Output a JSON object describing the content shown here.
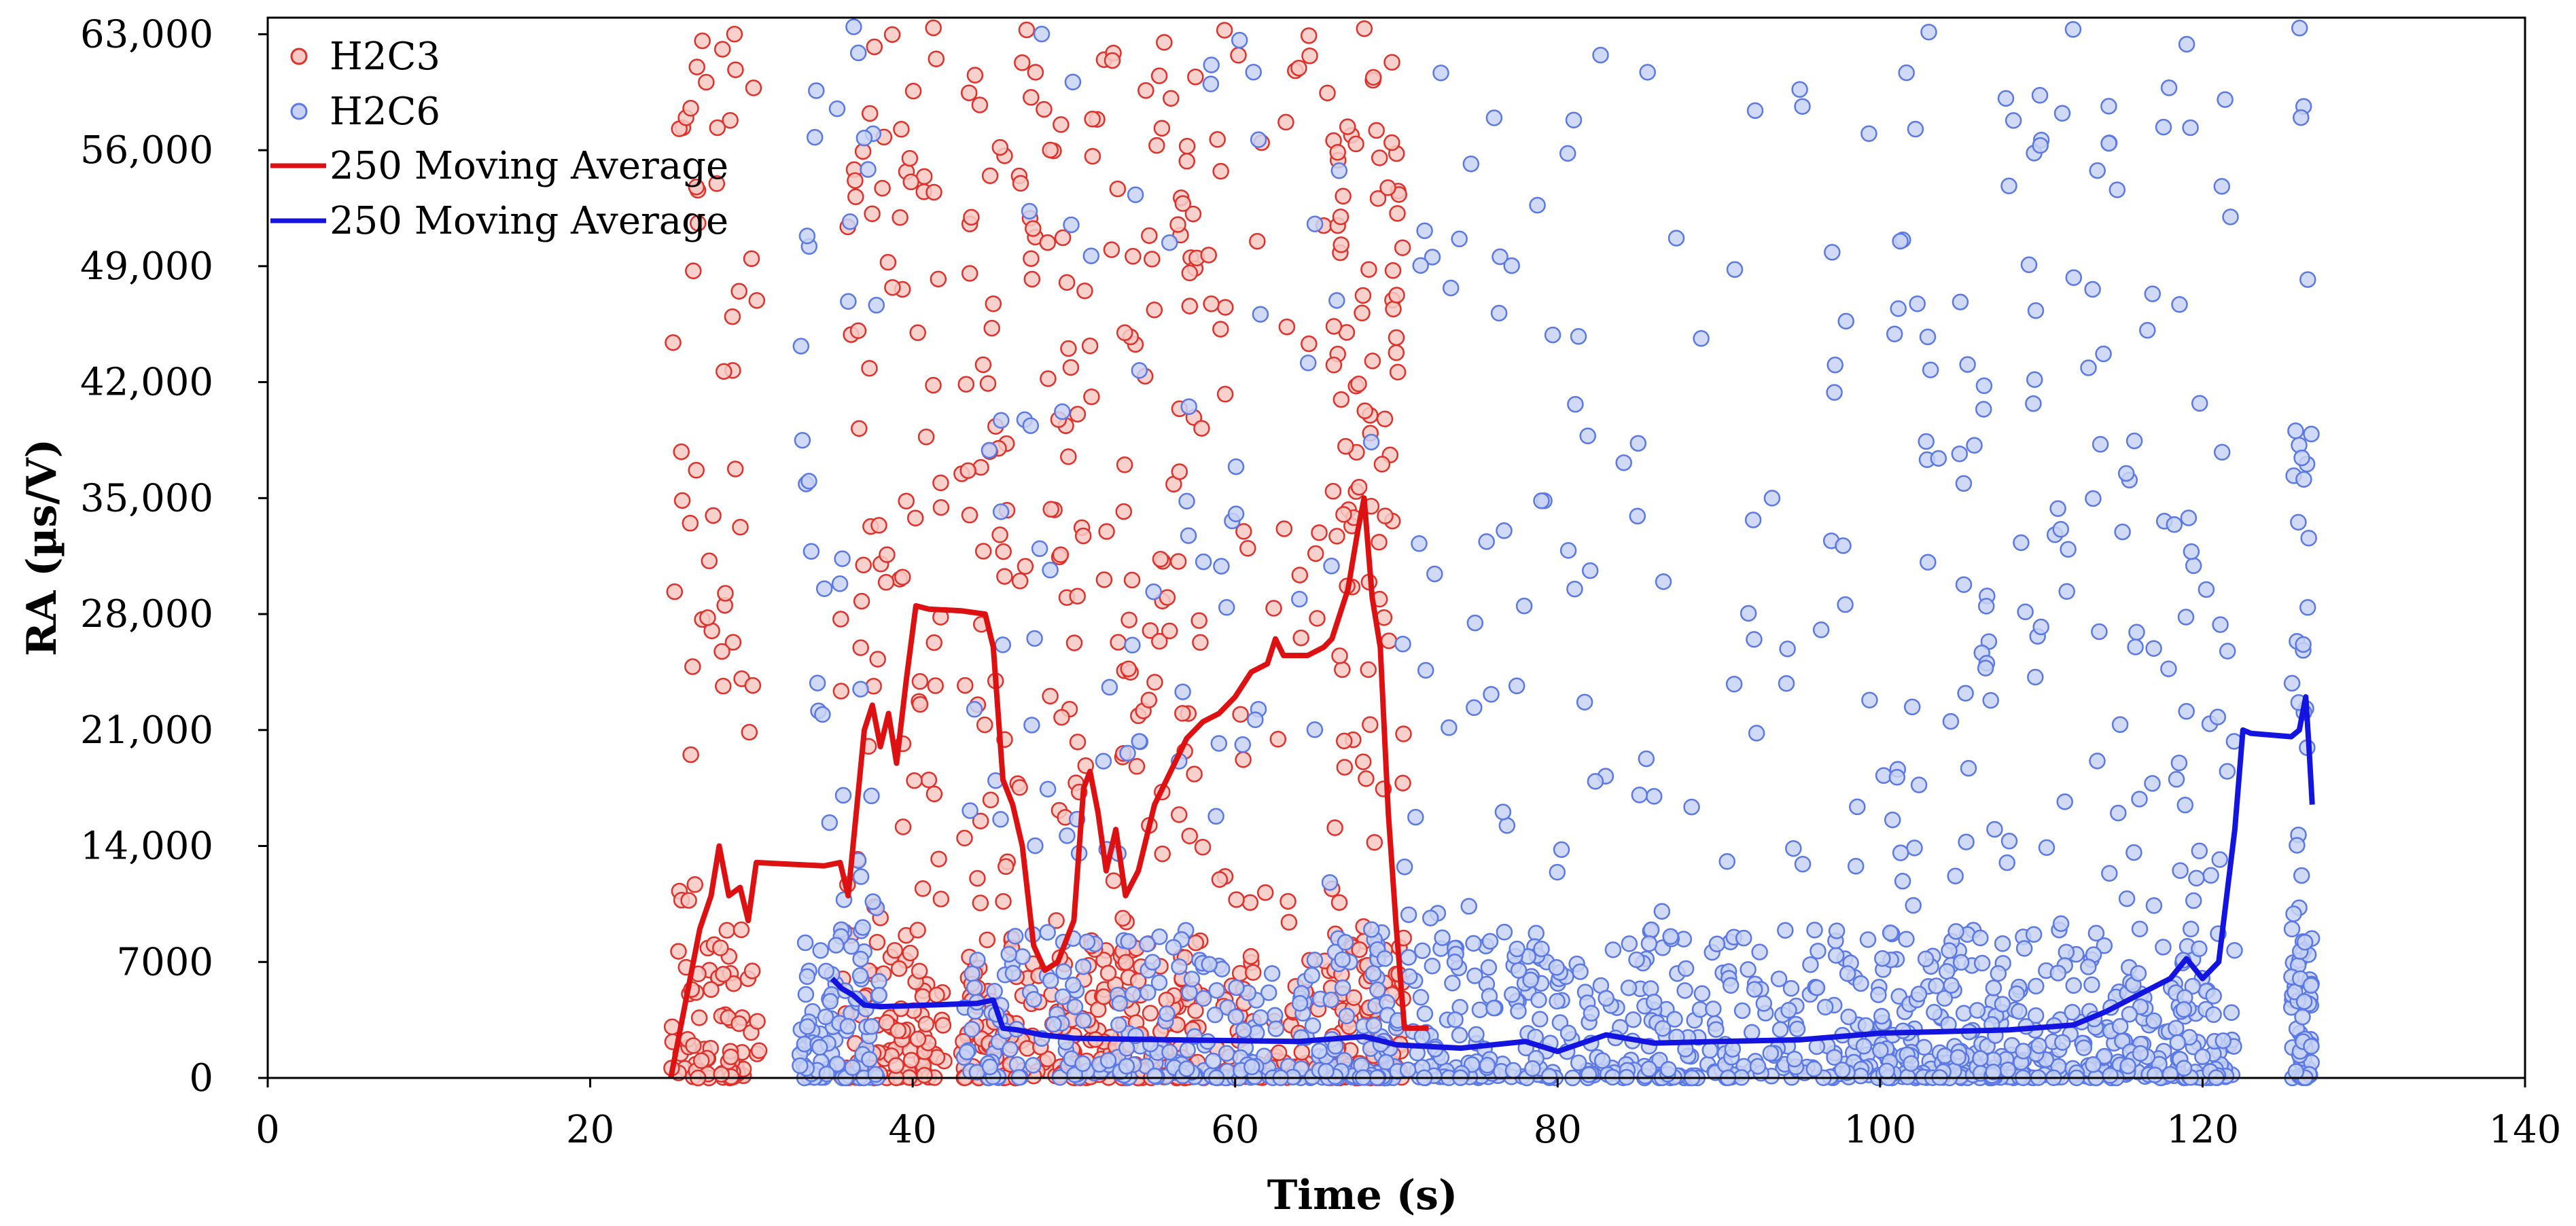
{
  "chart_data": {
    "type": "scatter",
    "title": "",
    "xlabel": "Time (s)",
    "ylabel": "RA (µs/V)",
    "xlim": [
      0,
      140
    ],
    "ylim": [
      0,
      64000
    ],
    "x_ticks": [
      0,
      20,
      40,
      60,
      80,
      100,
      120,
      140
    ],
    "x_tick_labels": [
      "0",
      "20",
      "40",
      "60",
      "80",
      "100",
      "120",
      "140"
    ],
    "y_ticks": [
      0,
      7000,
      14000,
      21000,
      28000,
      35000,
      42000,
      49000,
      56000,
      63000
    ],
    "y_tick_labels": [
      "0",
      "7000",
      "14,000",
      "21,000",
      "28,000",
      "35,000",
      "42,000",
      "49,000",
      "56,000",
      "63,000"
    ],
    "grid": false,
    "legend_position": "top-left",
    "series": [
      {
        "name": "H2C3",
        "kind": "scatter",
        "color": "#e0302a",
        "fill": "#f7c9c4",
        "clusters": [
          {
            "x_range": [
              25,
              30.5
            ],
            "dense": 70,
            "sparse": 55
          },
          {
            "x_range": [
              35.5,
              42
            ],
            "dense": 90,
            "sparse": 80
          },
          {
            "x_range": [
              43,
              58
            ],
            "dense": 220,
            "sparse": 200
          },
          {
            "x_range": [
              58,
              66
            ],
            "dense": 55,
            "sparse": 45
          },
          {
            "x_range": [
              66,
              70.5
            ],
            "dense": 90,
            "sparse": 90
          }
        ]
      },
      {
        "name": "H2C6",
        "kind": "scatter",
        "color": "#5a78e6",
        "fill": "#c8d2f4",
        "clusters": [
          {
            "x_range": [
              33,
              38
            ],
            "dense": 80,
            "sparse": 45
          },
          {
            "x_range": [
              43,
              70
            ],
            "dense": 260,
            "sparse": 90
          },
          {
            "x_range": [
              70,
              100
            ],
            "dense": 320,
            "sparse": 120
          },
          {
            "x_range": [
              100,
              122
            ],
            "dense": 320,
            "sparse": 190
          },
          {
            "x_range": [
              125.5,
              126.8
            ],
            "dense": 40,
            "sparse": 45
          }
        ]
      },
      {
        "name": "250 Moving Average",
        "kind": "line",
        "color": "#dd1111",
        "points": [
          [
            25,
            0
          ],
          [
            26,
            5000
          ],
          [
            26.8,
            9000
          ],
          [
            27.5,
            11000
          ],
          [
            28,
            14000
          ],
          [
            28.6,
            11000
          ],
          [
            29.3,
            11500
          ],
          [
            29.8,
            9500
          ],
          [
            30.3,
            13000
          ],
          [
            34.5,
            12800
          ],
          [
            35.5,
            13000
          ],
          [
            36,
            11000
          ],
          [
            36.5,
            16000
          ],
          [
            37,
            21000
          ],
          [
            37.5,
            22500
          ],
          [
            38,
            20000
          ],
          [
            38.5,
            22000
          ],
          [
            39,
            19000
          ],
          [
            39.6,
            24000
          ],
          [
            40.2,
            28500
          ],
          [
            41,
            28300
          ],
          [
            43,
            28200
          ],
          [
            44.5,
            28000
          ],
          [
            45,
            26000
          ],
          [
            45.6,
            18000
          ],
          [
            46.2,
            16500
          ],
          [
            46.8,
            14000
          ],
          [
            47.5,
            8000
          ],
          [
            48.2,
            6500
          ],
          [
            49,
            7000
          ],
          [
            50,
            9500
          ],
          [
            50.6,
            17500
          ],
          [
            51,
            18500
          ],
          [
            51.5,
            16000
          ],
          [
            52,
            12500
          ],
          [
            52.6,
            15000
          ],
          [
            53.2,
            11000
          ],
          [
            54,
            12500
          ],
          [
            55,
            16500
          ],
          [
            56,
            18500
          ],
          [
            57,
            20500
          ],
          [
            58,
            21500
          ],
          [
            59,
            22000
          ],
          [
            60,
            23000
          ],
          [
            61,
            24500
          ],
          [
            62,
            25000
          ],
          [
            62.5,
            26500
          ],
          [
            63,
            25500
          ],
          [
            64.5,
            25500
          ],
          [
            65.5,
            26000
          ],
          [
            66,
            26500
          ],
          [
            66.5,
            28000
          ],
          [
            67,
            29500
          ],
          [
            67.6,
            33000
          ],
          [
            68,
            35000
          ],
          [
            68.5,
            29000
          ],
          [
            69,
            26000
          ],
          [
            69.5,
            16000
          ],
          [
            70,
            9000
          ],
          [
            70.5,
            3000
          ],
          [
            72,
            3000
          ]
        ]
      },
      {
        "name": "250 Moving Average",
        "kind": "line",
        "color": "#1414e0",
        "points": [
          [
            35,
            6000
          ],
          [
            35.6,
            5400
          ],
          [
            36.3,
            5000
          ],
          [
            37,
            4400
          ],
          [
            38,
            4300
          ],
          [
            44,
            4500
          ],
          [
            45,
            4700
          ],
          [
            45.6,
            3000
          ],
          [
            46.5,
            2900
          ],
          [
            48,
            2600
          ],
          [
            50,
            2400
          ],
          [
            56,
            2300
          ],
          [
            64,
            2200
          ],
          [
            68,
            2500
          ],
          [
            70,
            2000
          ],
          [
            74,
            1800
          ],
          [
            78,
            2200
          ],
          [
            80,
            1600
          ],
          [
            83,
            2600
          ],
          [
            86,
            2100
          ],
          [
            90,
            2200
          ],
          [
            95,
            2300
          ],
          [
            100,
            2700
          ],
          [
            104,
            2800
          ],
          [
            108,
            2900
          ],
          [
            112,
            3200
          ],
          [
            114,
            4000
          ],
          [
            116,
            5000
          ],
          [
            118,
            6000
          ],
          [
            119,
            7200
          ],
          [
            120,
            6000
          ],
          [
            121,
            7000
          ],
          [
            121.5,
            11000
          ],
          [
            122,
            15000
          ],
          [
            122.5,
            21000
          ],
          [
            123,
            20800
          ],
          [
            125.5,
            20600
          ],
          [
            126,
            21000
          ],
          [
            126.4,
            23000
          ],
          [
            126.6,
            20000
          ],
          [
            126.8,
            16500
          ]
        ]
      }
    ]
  },
  "legend": [
    {
      "label": "H2C3"
    },
    {
      "label": "H2C6"
    },
    {
      "label": "250 Moving Average"
    },
    {
      "label": "250 Moving Average"
    }
  ]
}
